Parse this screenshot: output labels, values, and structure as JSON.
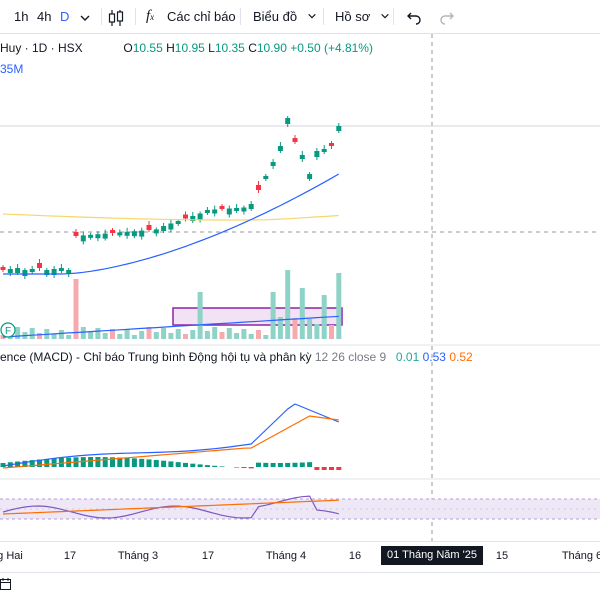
{
  "toolbar": {
    "intervals": [
      "1h",
      "4h",
      "D"
    ],
    "indicators_label": "Các chỉ báo",
    "chart_type_label": "Biểu đồ",
    "profile_label": "Hồ sơ"
  },
  "legend": {
    "symbol": "Huy · 1D · HSX",
    "o_label": "O",
    "o_value": "10.55",
    "h_label": "H",
    "h_value": "10.95",
    "l_label": "L",
    "l_value": "10.35",
    "c_label": "C",
    "c_value": "10.90",
    "change": "+0.50 (+4.81%)",
    "volume": "35M",
    "macd_title": "ence (MACD) - Chỉ báo Trung bình Động hội tụ và phân kỳ",
    "macd_params": "12 26 close 9",
    "macd_v1": "0.01",
    "macd_v2": "0.53",
    "macd_v3": "0.52"
  },
  "flag_letter": "F",
  "time_axis": [
    "g Hai",
    "17",
    "Tháng 3",
    "17",
    "Tháng 4",
    "16",
    "15",
    "Tháng 6"
  ],
  "crosshair_date": "01 Tháng Năm '25",
  "colors": {
    "up": "#089981",
    "down": "#f23645",
    "vol_up": "#8fd3c8",
    "vol_down": "#f7a9b0",
    "ma_blue": "#2962ff",
    "ma_yellow": "#f5d76e",
    "macd_line": "#2962ff",
    "signal_line": "#ff6d00",
    "rsi_line": "#7e57c2",
    "accent": "#2962ff"
  },
  "icons": {
    "candles": "candlestick-icon",
    "indicators": "fx-icon",
    "undo": "undo-icon",
    "redo": "redo-icon",
    "interval_dropdown": "chevron-down-icon"
  }
}
